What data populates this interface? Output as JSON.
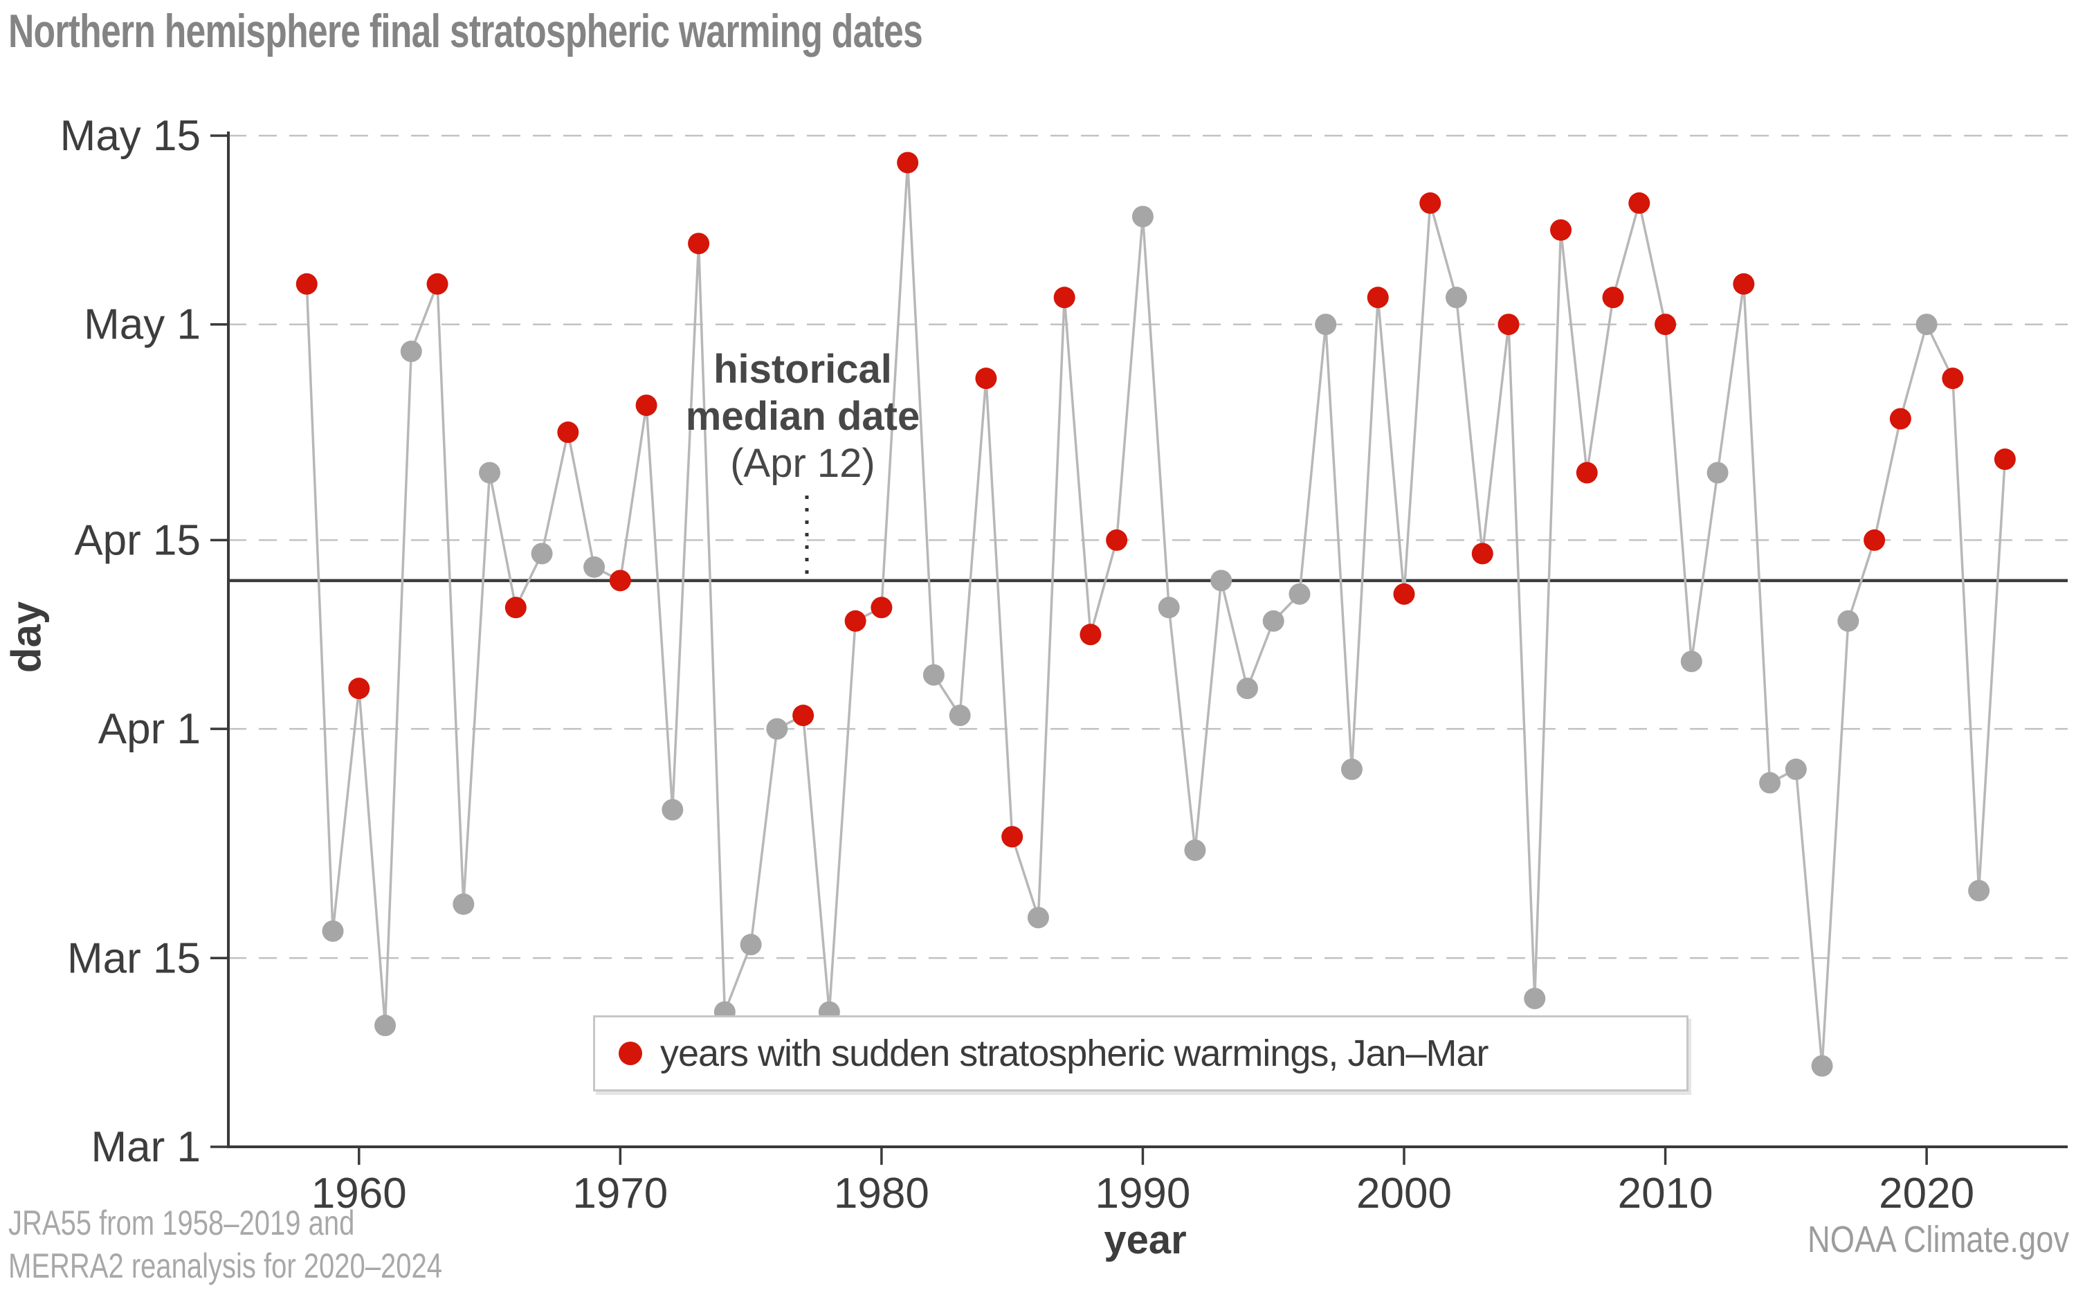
{
  "title": "Northern hemisphere final stratospheric warming dates",
  "axes": {
    "y_title": "day",
    "x_title": "year"
  },
  "legend": {
    "label": "years with sudden stratospheric warmings, Jan–Mar"
  },
  "annotation": {
    "line1": "historical",
    "line2": "median date",
    "line3": "(Apr 12)"
  },
  "footer": {
    "source_line1": "JRA55 from 1958–2019 and",
    "source_line2": "MERRA2 reanalysis for 2020–2024",
    "credit": "NOAA Climate.gov"
  },
  "colors": {
    "ssw_red": "#d51507",
    "non_ssw_gray": "#a6a6a6",
    "line_gray": "#b7b7b7",
    "median_line": "#3c3c3c",
    "grid": "#c2c2c2",
    "axis": "#3a3a3a",
    "tick_label": "#3d3d3d",
    "title_gray": "#848484",
    "footer_gray": "#a8a8a8"
  },
  "chart_data": {
    "type": "scatter",
    "title": "Northern hemisphere final stratospheric warming dates",
    "xlabel": "year",
    "ylabel": "day",
    "legend_position": "bottom-center",
    "grid": "dashed-horizontal",
    "xlim": [
      1955.0,
      2025.4
    ],
    "ylim_days": [
      0,
      75
    ],
    "x_ticks": [
      1960,
      1970,
      1980,
      1990,
      2000,
      2010,
      2020
    ],
    "y_ticks": [
      {
        "label": "May 15",
        "day": 75
      },
      {
        "label": "May 1",
        "day": 61
      },
      {
        "label": "Apr 15",
        "day": 45
      },
      {
        "label": "Apr 1",
        "day": 31
      },
      {
        "label": "Mar 15",
        "day": 14
      },
      {
        "label": "Mar 1",
        "day": 0
      }
    ],
    "median": {
      "label": "(Apr 12)",
      "date": "Apr 12",
      "day": 42
    },
    "series_note": "ssw=true → red dot (sudden stratospheric warming Jan–Mar); ssw=false → gray dot; day = days after Mar 1",
    "points": [
      {
        "year": 1958,
        "date": "May 4",
        "day": 64,
        "ssw": true
      },
      {
        "year": 1959,
        "date": "Mar 17",
        "day": 16,
        "ssw": false
      },
      {
        "year": 1960,
        "date": "Apr 4",
        "day": 34,
        "ssw": true
      },
      {
        "year": 1961,
        "date": "Mar 10",
        "day": 9,
        "ssw": false
      },
      {
        "year": 1962,
        "date": "Apr 29",
        "day": 59,
        "ssw": false
      },
      {
        "year": 1963,
        "date": "May 4",
        "day": 64,
        "ssw": true
      },
      {
        "year": 1964,
        "date": "Mar 19",
        "day": 18,
        "ssw": false
      },
      {
        "year": 1965,
        "date": "Apr 20",
        "day": 50,
        "ssw": false
      },
      {
        "year": 1966,
        "date": "Apr 10",
        "day": 40,
        "ssw": true
      },
      {
        "year": 1967,
        "date": "Apr 14",
        "day": 44,
        "ssw": false
      },
      {
        "year": 1968,
        "date": "Apr 23",
        "day": 53,
        "ssw": true
      },
      {
        "year": 1969,
        "date": "Apr 13",
        "day": 43,
        "ssw": false
      },
      {
        "year": 1970,
        "date": "Apr 12",
        "day": 42,
        "ssw": true
      },
      {
        "year": 1971,
        "date": "Apr 25",
        "day": 55,
        "ssw": true
      },
      {
        "year": 1972,
        "date": "Mar 26",
        "day": 25,
        "ssw": false
      },
      {
        "year": 1973,
        "date": "May 7",
        "day": 67,
        "ssw": true
      },
      {
        "year": 1974,
        "date": "Mar 11",
        "day": 10,
        "ssw": false
      },
      {
        "year": 1975,
        "date": "Mar 16",
        "day": 15,
        "ssw": false
      },
      {
        "year": 1976,
        "date": "Apr 1",
        "day": 31,
        "ssw": false
      },
      {
        "year": 1977,
        "date": "Apr 2",
        "day": 32,
        "ssw": true
      },
      {
        "year": 1978,
        "date": "Mar 11",
        "day": 10,
        "ssw": false
      },
      {
        "year": 1979,
        "date": "Apr 9",
        "day": 39,
        "ssw": true
      },
      {
        "year": 1980,
        "date": "Apr 10",
        "day": 40,
        "ssw": true
      },
      {
        "year": 1981,
        "date": "May 13",
        "day": 73,
        "ssw": true
      },
      {
        "year": 1982,
        "date": "Apr 5",
        "day": 35,
        "ssw": false
      },
      {
        "year": 1983,
        "date": "Apr 2",
        "day": 32,
        "ssw": false
      },
      {
        "year": 1984,
        "date": "Apr 27",
        "day": 57,
        "ssw": true
      },
      {
        "year": 1985,
        "date": "Mar 24",
        "day": 23,
        "ssw": true
      },
      {
        "year": 1986,
        "date": "Mar 18",
        "day": 17,
        "ssw": false
      },
      {
        "year": 1987,
        "date": "May 3",
        "day": 63,
        "ssw": true
      },
      {
        "year": 1988,
        "date": "Apr 8",
        "day": 38,
        "ssw": true
      },
      {
        "year": 1989,
        "date": "Apr 15",
        "day": 45,
        "ssw": true
      },
      {
        "year": 1990,
        "date": "May 9",
        "day": 69,
        "ssw": false
      },
      {
        "year": 1991,
        "date": "Apr 10",
        "day": 40,
        "ssw": false
      },
      {
        "year": 1992,
        "date": "Mar 23",
        "day": 22,
        "ssw": false
      },
      {
        "year": 1993,
        "date": "Apr 12",
        "day": 42,
        "ssw": false
      },
      {
        "year": 1994,
        "date": "Apr 4",
        "day": 34,
        "ssw": false
      },
      {
        "year": 1995,
        "date": "Apr 9",
        "day": 39,
        "ssw": false
      },
      {
        "year": 1996,
        "date": "Apr 11",
        "day": 41,
        "ssw": false
      },
      {
        "year": 1997,
        "date": "May 1",
        "day": 61,
        "ssw": false
      },
      {
        "year": 1998,
        "date": "Mar 29",
        "day": 28,
        "ssw": false
      },
      {
        "year": 1999,
        "date": "May 3",
        "day": 63,
        "ssw": true
      },
      {
        "year": 2000,
        "date": "Apr 11",
        "day": 41,
        "ssw": true
      },
      {
        "year": 2001,
        "date": "May 10",
        "day": 70,
        "ssw": true
      },
      {
        "year": 2002,
        "date": "May 3",
        "day": 63,
        "ssw": false
      },
      {
        "year": 2003,
        "date": "Apr 14",
        "day": 44,
        "ssw": true
      },
      {
        "year": 2004,
        "date": "May 1",
        "day": 61,
        "ssw": true
      },
      {
        "year": 2005,
        "date": "Mar 12",
        "day": 11,
        "ssw": false
      },
      {
        "year": 2006,
        "date": "May 8",
        "day": 68,
        "ssw": true
      },
      {
        "year": 2007,
        "date": "Apr 20",
        "day": 50,
        "ssw": true
      },
      {
        "year": 2008,
        "date": "May 3",
        "day": 63,
        "ssw": true
      },
      {
        "year": 2009,
        "date": "May 10",
        "day": 70,
        "ssw": true
      },
      {
        "year": 2010,
        "date": "May 1",
        "day": 61,
        "ssw": true
      },
      {
        "year": 2011,
        "date": "Apr 6",
        "day": 36,
        "ssw": false
      },
      {
        "year": 2012,
        "date": "Apr 20",
        "day": 50,
        "ssw": false
      },
      {
        "year": 2013,
        "date": "May 4",
        "day": 64,
        "ssw": true
      },
      {
        "year": 2014,
        "date": "Mar 28",
        "day": 27,
        "ssw": false
      },
      {
        "year": 2015,
        "date": "Mar 29",
        "day": 28,
        "ssw": false
      },
      {
        "year": 2016,
        "date": "Mar 7",
        "day": 6,
        "ssw": false
      },
      {
        "year": 2017,
        "date": "Apr 9",
        "day": 39,
        "ssw": false
      },
      {
        "year": 2018,
        "date": "Apr 15",
        "day": 45,
        "ssw": true
      },
      {
        "year": 2019,
        "date": "Apr 24",
        "day": 54,
        "ssw": true
      },
      {
        "year": 2020,
        "date": "May 1",
        "day": 61,
        "ssw": false
      },
      {
        "year": 2021,
        "date": "Apr 27",
        "day": 57,
        "ssw": true
      },
      {
        "year": 2022,
        "date": "Mar 20",
        "day": 19,
        "ssw": false
      },
      {
        "year": 2023,
        "date": "Apr 21",
        "day": 51,
        "ssw": true
      }
    ]
  }
}
